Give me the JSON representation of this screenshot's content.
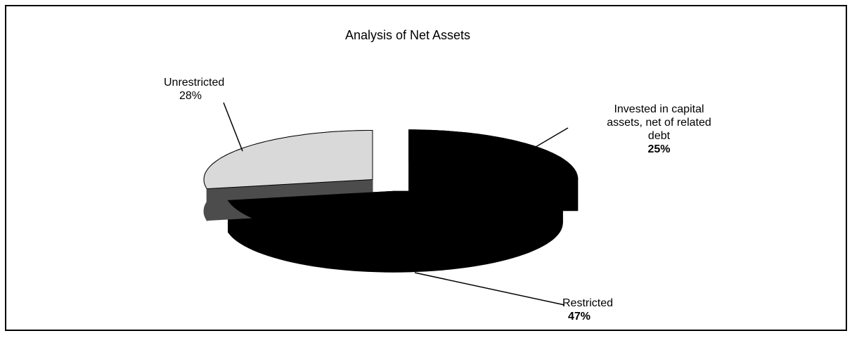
{
  "chart_data": {
    "type": "pie",
    "title": "Analysis of Net Assets",
    "categories": [
      "Invested in capital assets, net of related debt",
      "Restricted",
      "Unrestricted"
    ],
    "values": [
      25,
      47,
      28
    ],
    "value_labels": [
      "25%",
      "47%",
      "28%"
    ],
    "colors": [
      "#000000",
      "#000000",
      "#d9d9d9"
    ]
  }
}
